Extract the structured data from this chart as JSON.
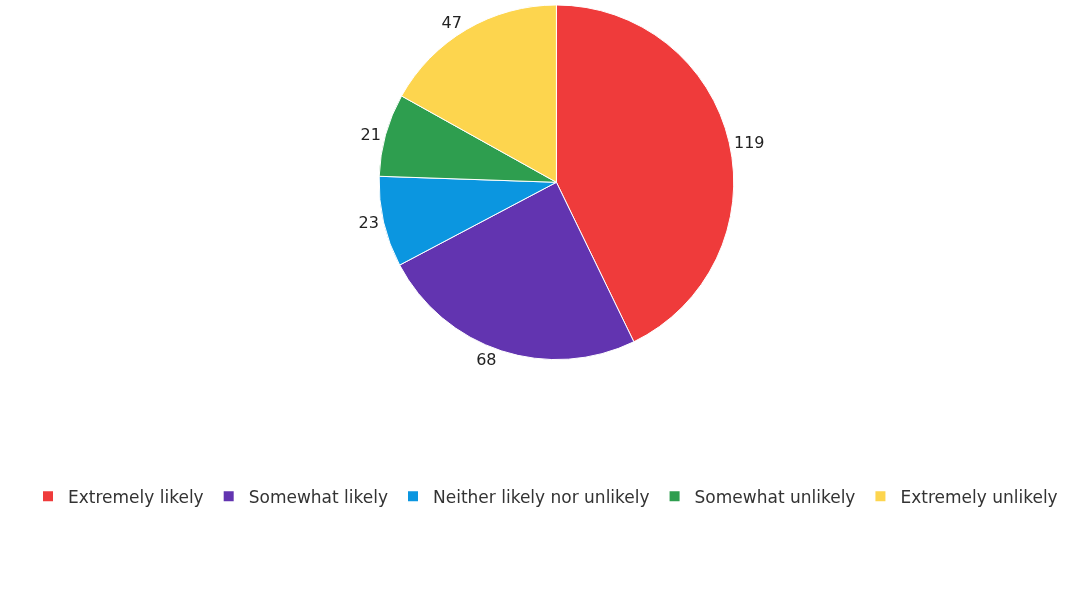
{
  "chart_data": {
    "type": "pie",
    "categories": [
      "Extremely likely",
      "Somewhat likely",
      "Neither likely nor unlikely",
      "Somewhat unlikely",
      "Extremely unlikely"
    ],
    "values": [
      119,
      68,
      23,
      21,
      47
    ],
    "colors": [
      "#ef3b3b",
      "#6234b0",
      "#0b96e0",
      "#2e9e4f",
      "#fdd54e"
    ],
    "data_labels": true,
    "legend": "bottom"
  }
}
